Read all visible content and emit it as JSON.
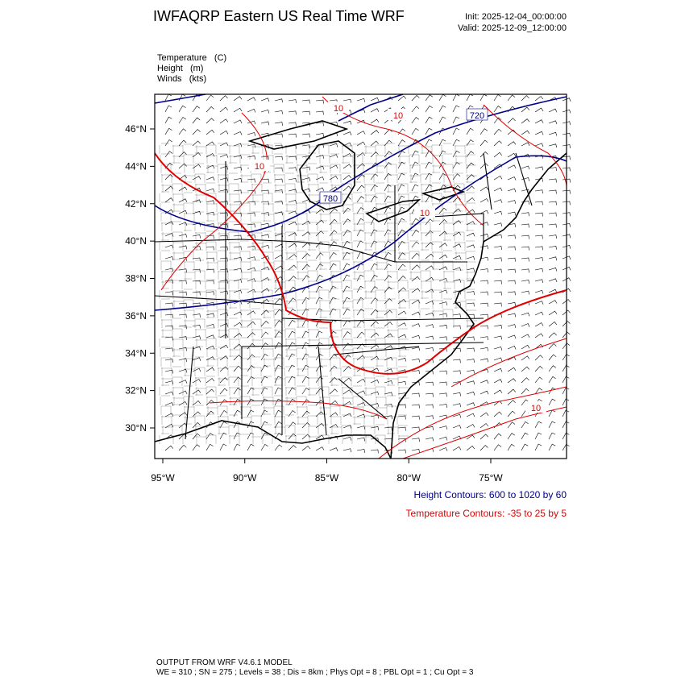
{
  "header": {
    "title": "IWFAQRP Eastern US Real Time WRF",
    "init": "Init: 2025-12-04_00:00:00",
    "valid": "Valid: 2025-12-09_12:00:00"
  },
  "fields": [
    "Temperature   (C)",
    "Height   (m)",
    "Winds   (kts)"
  ],
  "map": {
    "lat_ticks": [
      {
        "value": 30,
        "label": "30°N"
      },
      {
        "value": 32,
        "label": "32°N"
      },
      {
        "value": 34,
        "label": "34°N"
      },
      {
        "value": 36,
        "label": "36°N"
      },
      {
        "value": 38,
        "label": "38°N"
      },
      {
        "value": 40,
        "label": "40°N"
      },
      {
        "value": 42,
        "label": "42°N"
      },
      {
        "value": 44,
        "label": "44°N"
      },
      {
        "value": 46,
        "label": "46°N"
      }
    ],
    "lon_ticks": [
      {
        "value": -95,
        "label": "95°W"
      },
      {
        "value": -90,
        "label": "90°W"
      },
      {
        "value": -85,
        "label": "85°W"
      },
      {
        "value": -80,
        "label": "80°W"
      },
      {
        "value": -75,
        "label": "75°W"
      }
    ],
    "contour_labels": [
      {
        "text": "10",
        "kind": "temperature"
      },
      {
        "text": "10",
        "kind": "temperature"
      },
      {
        "text": "720",
        "kind": "height"
      },
      {
        "text": "10",
        "kind": "temperature"
      },
      {
        "text": "780",
        "kind": "height"
      },
      {
        "text": "10",
        "kind": "temperature"
      },
      {
        "text": "10",
        "kind": "temperature"
      }
    ]
  },
  "legend": [
    "Height Contours: 600 to 1020 by 60",
    "Temperature Contours: -35 to 25 by 5"
  ],
  "footer": [
    "OUTPUT FROM WRF V4.6.1 MODEL",
    "WE = 310 ; SN = 275 ; Levels = 38 ; Dis = 8km ; Phys Opt = 8 ; PBL Opt = 1 ; Cu Opt = 3"
  ]
}
